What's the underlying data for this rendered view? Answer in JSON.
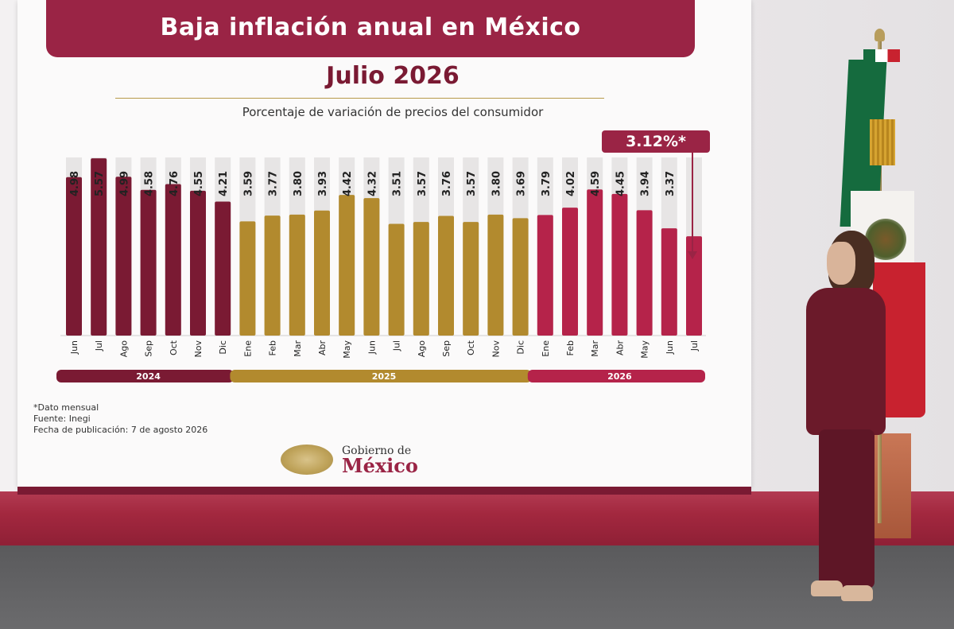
{
  "title": "Baja inflación anual en México",
  "subtitle": "Julio 2026",
  "caption": "Porcentaje de variación de precios del consumidor",
  "callout": "3.12%*",
  "notes": {
    "line1": "*Dato mensual",
    "line2": "Fuente: Inegi",
    "line3": "Fecha de publicación: 7 de agosto 2026"
  },
  "logo": {
    "line1": "Gobierno de",
    "line2": "México"
  },
  "colors": {
    "y2024": "#7a1a33",
    "y2025": "#b28a2e",
    "y2026": "#b5234a",
    "track": "#e7e5e5",
    "accent": "#9a2445"
  },
  "chart_data": {
    "type": "bar",
    "title": "Baja inflación anual en México",
    "subtitle": "Julio 2026",
    "ylabel": "",
    "xlabel": "",
    "ylim": [
      0,
      7.5
    ],
    "grid": false,
    "categories": [
      "Jun",
      "Jul",
      "Ago",
      "Sep",
      "Oct",
      "Nov",
      "Dic",
      "Ene",
      "Feb",
      "Mar",
      "Abr",
      "May",
      "Jun",
      "Jul",
      "Ago",
      "Sep",
      "Oct",
      "Nov",
      "Dic",
      "Ene",
      "Feb",
      "Mar",
      "Abr",
      "May",
      "Jun",
      "Jul"
    ],
    "values": [
      4.98,
      5.57,
      4.99,
      4.58,
      4.76,
      4.55,
      4.21,
      3.59,
      3.77,
      3.8,
      3.93,
      4.42,
      4.32,
      3.51,
      3.57,
      3.76,
      3.57,
      3.8,
      3.69,
      3.79,
      4.02,
      4.59,
      4.45,
      3.94,
      3.37,
      3.12
    ],
    "value_labels": [
      "4.98",
      "5.57",
      "4.99",
      "4.58",
      "4.76",
      "4.55",
      "4.21",
      "3.59",
      "3.77",
      "3.80",
      "3.93",
      "4.42",
      "4.32",
      "3.51",
      "3.57",
      "3.76",
      "3.57",
      "3.80",
      "3.69",
      "3.79",
      "4.02",
      "4.59",
      "4.45",
      "3.94",
      "3.37",
      ""
    ],
    "year_groups": [
      {
        "label": "2024",
        "start": 0,
        "count": 7
      },
      {
        "label": "2025",
        "start": 7,
        "count": 12
      },
      {
        "label": "2026",
        "start": 19,
        "count": 7
      }
    ],
    "highlight": {
      "index": 25,
      "label": "3.12%*"
    }
  }
}
